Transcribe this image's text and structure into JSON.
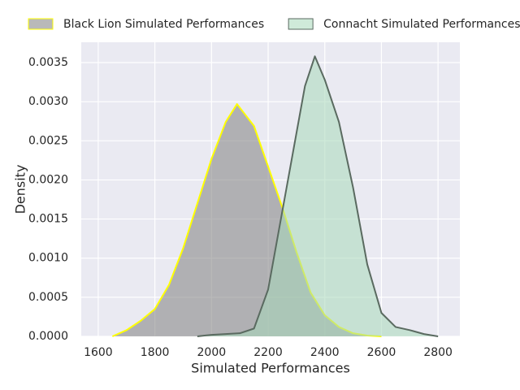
{
  "chart_data": {
    "type": "kde",
    "xlabel": "Simulated Performances",
    "ylabel": "Density",
    "xlim": [
      1540,
      2877
    ],
    "ylim": [
      0,
      0.00376
    ],
    "xticks": [
      1600,
      1800,
      2000,
      2200,
      2400,
      2600,
      2800
    ],
    "yticks": [
      {
        "value": 0,
        "label": "0.0000"
      },
      {
        "value": 0.0005,
        "label": "0.0005"
      },
      {
        "value": 0.001,
        "label": "0.0010"
      },
      {
        "value": 0.0015,
        "label": "0.0015"
      },
      {
        "value": 0.002,
        "label": "0.0020"
      },
      {
        "value": 0.0025,
        "label": "0.0025"
      },
      {
        "value": 0.003,
        "label": "0.0030"
      },
      {
        "value": 0.0035,
        "label": "0.0035"
      }
    ],
    "grid": true,
    "legend": "upper center",
    "series": [
      {
        "name": "Black Lion Simulated Performances",
        "color": "#808080",
        "edgecolor": "#ffff00",
        "x": [
          1650,
          1700,
          1750,
          1800,
          1850,
          1900,
          1950,
          2000,
          2050,
          2090,
          2150,
          2200,
          2250,
          2300,
          2350,
          2400,
          2450,
          2500,
          2550,
          2600
        ],
        "values": [
          0,
          8e-05,
          0.0002,
          0.00035,
          0.00066,
          0.00113,
          0.0017,
          0.00227,
          0.00274,
          0.00297,
          0.00269,
          0.00217,
          0.00165,
          0.00108,
          0.00056,
          0.00027,
          0.00012,
          4e-05,
          1e-05,
          0
        ]
      },
      {
        "name": "Connacht Simulated Performances",
        "color": "#a8d8b9",
        "edgecolor": "#5a6a60",
        "x": [
          1950,
          2000,
          2050,
          2100,
          2150,
          2200,
          2250,
          2300,
          2330,
          2365,
          2400,
          2450,
          2500,
          2550,
          2600,
          2650,
          2700,
          2750,
          2800
        ],
        "values": [
          0,
          2e-05,
          3e-05,
          4e-05,
          0.0001,
          0.0006,
          0.0016,
          0.0026,
          0.0032,
          0.00358,
          0.00328,
          0.00274,
          0.0019,
          0.00092,
          0.0003,
          0.00012,
          8e-05,
          3e-05,
          0
        ]
      }
    ]
  }
}
